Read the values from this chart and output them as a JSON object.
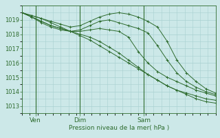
{
  "background_color": "#cce8e8",
  "grid_color": "#a8d0d0",
  "line_color": "#2d6b2d",
  "marker": "+",
  "marker_size": 3,
  "xlabel": "Pression niveau de la mer( hPa )",
  "ylim": [
    1012.7,
    1019.8
  ],
  "xlim": [
    0,
    100
  ],
  "yticks": [
    1013,
    1014,
    1015,
    1016,
    1017,
    1018,
    1019
  ],
  "xtick_positions": [
    7,
    30,
    63
  ],
  "xtick_labels": [
    "Ven",
    "Dim",
    "Sam"
  ],
  "vlines": [
    7,
    30,
    63
  ],
  "series": [
    [
      1019.5,
      1019.3,
      1019.1,
      1018.8,
      1018.5,
      1018.2,
      1017.9,
      1017.6,
      1017.2,
      1016.8,
      1016.4,
      1016.0,
      1015.6,
      1015.2,
      1014.8,
      1014.4,
      1014.1,
      1013.8,
      1013.5,
      1013.3,
      1013.2
    ],
    [
      1019.5,
      1019.2,
      1018.9,
      1018.6,
      1018.4,
      1018.2,
      1018.0,
      1017.8,
      1017.5,
      1017.1,
      1016.7,
      1016.2,
      1015.7,
      1015.2,
      1014.8,
      1014.4,
      1014.1,
      1013.9,
      1013.7,
      1013.5,
      1013.4
    ],
    [
      1019.5,
      1019.2,
      1018.8,
      1018.5,
      1018.3,
      1018.2,
      1018.2,
      1018.3,
      1018.4,
      1018.3,
      1018.2,
      1017.8,
      1016.8,
      1016.0,
      1015.4,
      1015.0,
      1014.7,
      1014.4,
      1014.1,
      1013.9,
      1013.7
    ],
    [
      1019.5,
      1019.3,
      1019.1,
      1018.9,
      1018.7,
      1018.5,
      1018.6,
      1018.9,
      1019.2,
      1019.4,
      1019.5,
      1019.4,
      1019.2,
      1018.9,
      1018.5,
      1017.5,
      1016.2,
      1015.3,
      1014.7,
      1014.2,
      1013.9
    ],
    [
      1019.5,
      1019.2,
      1018.9,
      1018.6,
      1018.4,
      1018.2,
      1018.3,
      1018.6,
      1018.9,
      1019.0,
      1018.8,
      1018.6,
      1018.4,
      1018.1,
      1017.2,
      1016.2,
      1015.3,
      1014.7,
      1014.3,
      1014.0,
      1013.8
    ]
  ],
  "x_coords": [
    0,
    5,
    10,
    15,
    20,
    25,
    30,
    35,
    40,
    45,
    50,
    55,
    60,
    65,
    70,
    75,
    80,
    85,
    90,
    95,
    100
  ]
}
